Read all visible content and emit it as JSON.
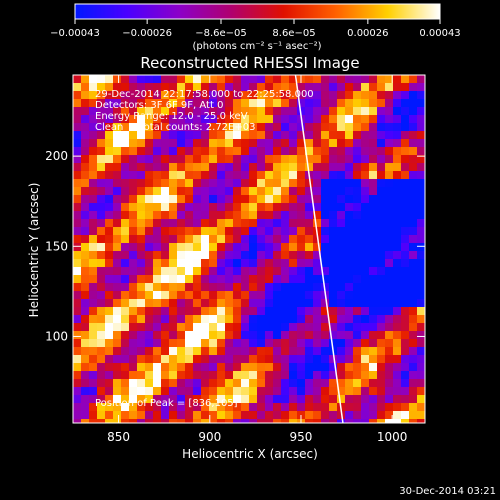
{
  "chart_data": {
    "type": "heatmap",
    "title": "Reconstructed RHESSI Image",
    "xlabel": "Heliocentric X (arcsec)",
    "ylabel": "Heliocentric Y (arcsec)",
    "xlim": [
      825,
      1018
    ],
    "ylim": [
      52,
      245
    ],
    "x_ticks": [
      850,
      900,
      950,
      1000
    ],
    "y_ticks": [
      100,
      150,
      200
    ],
    "colorbar": {
      "unit_label": "(photons cm⁻² s⁻¹ asec⁻²)",
      "range": [
        -0.00043,
        0.00043
      ],
      "ticks": [
        {
          "value": -0.00043,
          "label": "−0.00043"
        },
        {
          "value": -0.00026,
          "label": "−0.00026"
        },
        {
          "value": -8.6e-05,
          "label": "−8.6e−05"
        },
        {
          "value": 8.6e-05,
          "label": "8.6e−05"
        },
        {
          "value": 0.00026,
          "label": "0.00026"
        },
        {
          "value": 0.00043,
          "label": "0.00043"
        }
      ],
      "colormap": [
        "#0018ff",
        "#4a00ff",
        "#8c00c8",
        "#b0006e",
        "#e01000",
        "#ff6000",
        "#ffd000",
        "#ffffff"
      ]
    },
    "annotations": [
      "29-Dec-2014 22:17:58.000 to 22:25:58.000",
      "Detectors: 3F 6F 9F, Att 0",
      "Energy Range: 12.0 - 25.0 keV",
      "Clean     Total counts: 2.72E+03",
      "Position of Peak = [836,105]"
    ],
    "limb_line": [
      [
        947,
        245
      ],
      [
        973,
        52
      ]
    ],
    "grid": false
  },
  "timestamp": "30-Dec-2014 03:21"
}
